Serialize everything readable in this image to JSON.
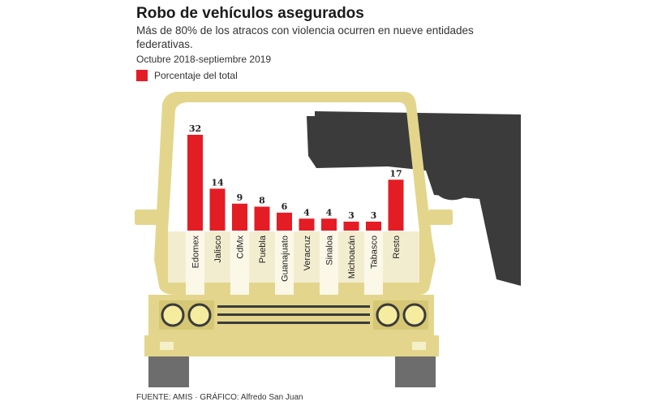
{
  "header": {
    "title": "Robo de vehículos asegurados",
    "subtitle": "Más de 80% de los atracos con violencia ocurren en nueve entidades federativas.",
    "period": "Octubre 2018-septiembre 2019"
  },
  "footer": {
    "source": "FUENTE: AMIS · GRÁFICO: Alfredo San Juan"
  },
  "colors": {
    "bar": "#e41d24",
    "car": "#e3d68c",
    "car_outline": "#d6c875",
    "label_band": "#f3edd0",
    "gun": "#3b3b3b",
    "tire": "#6d6d6d"
  },
  "chart_data": {
    "type": "bar",
    "categories": [
      "Edomex",
      "Jalisco",
      "CdMx",
      "Puebla",
      "Guanajuato",
      "Veracruz",
      "Sinaloa",
      "Michoacán",
      "Tabasco",
      "Resto"
    ],
    "series": [
      {
        "name": "Porcentaje del total",
        "values": [
          32,
          14,
          9,
          8,
          6,
          4,
          4,
          3,
          3,
          17
        ]
      }
    ],
    "legend_position": "top-left",
    "grid": false
  }
}
